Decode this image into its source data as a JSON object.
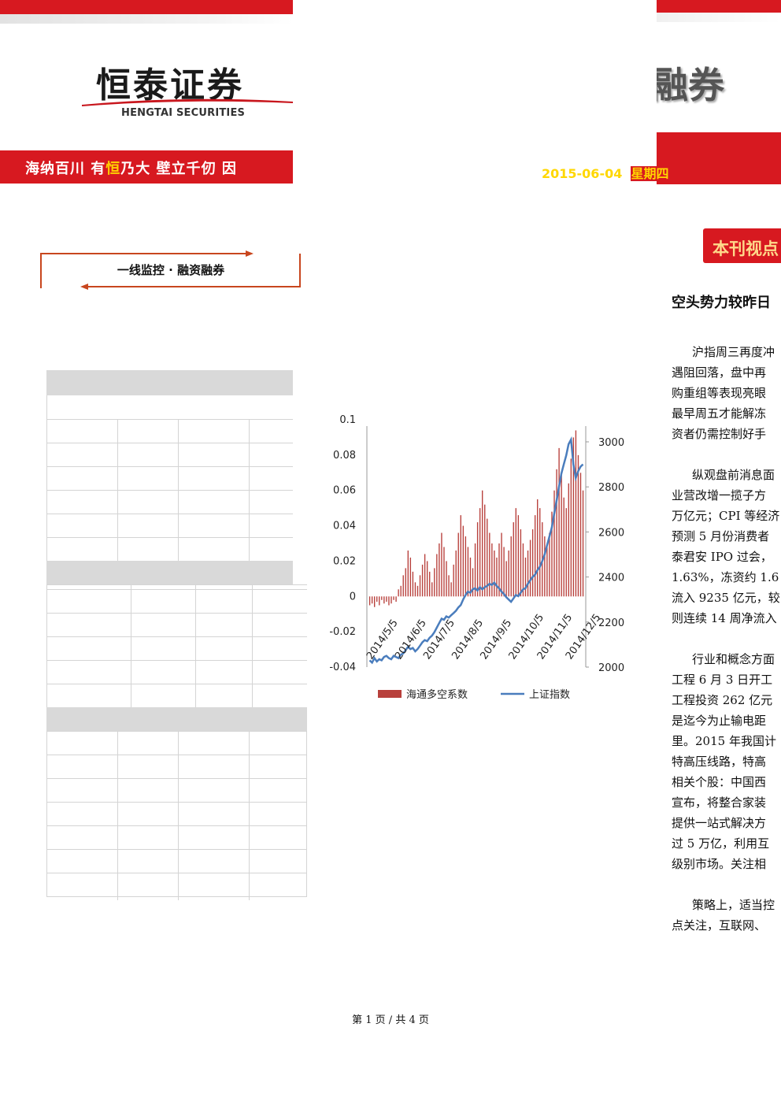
{
  "header": {
    "logo_cn": "恒泰证券",
    "logo_en": "HENGTAI SECURITIES",
    "slogan_part1": "海纳百川 有",
    "slogan_highlight": "恒",
    "slogan_part2": "乃大  壁立千仞 因",
    "right_logo_fragment": "融券",
    "date": "2015-06-04",
    "weekday": "星期四",
    "colors": {
      "brand_red": "#d71920",
      "date_yellow": "#ffd700"
    }
  },
  "section": {
    "title": "一线监控 · 融资融券"
  },
  "view": {
    "badge": "本刊视点",
    "headline": "空头势力较昨日",
    "paragraphs": [
      [
        "沪指周三再度冲",
        "遇阻回落，盘中再",
        "购重组等表现亮眼",
        "最早周五才能解冻",
        "资者仍需控制好手"
      ],
      [
        "纵观盘前消息面",
        "业营改增一揽子方",
        "万亿元；CPI 等经济",
        "预测 5 月份消费者",
        "泰君安 IPO 过会，",
        "1.63%，冻资约 1.6",
        "流入 9235 亿元，较",
        "则连续 14 周净流入"
      ],
      [
        "行业和概念方面",
        "工程 6 月 3 日开工",
        "工程投资 262 亿元",
        "是迄今为止输电距",
        "里。2015 年我国计",
        "特高压线路，特高",
        "相关个股：中国西",
        "宣布，将整合家装",
        "提供一站式解决方",
        "过 5 万亿，利用互",
        "级别市场。关注相"
      ],
      [
        "策略上，适当控",
        "点关注，互联网、"
      ]
    ]
  },
  "chart_data": {
    "type": "bar+line",
    "y_left": {
      "ticks": [
        "0.1",
        "0.08",
        "0.06",
        "0.04",
        "0.02",
        "0",
        "-0.02",
        "-0.04"
      ],
      "range": [
        -0.04,
        0.1
      ]
    },
    "y_right": {
      "ticks": [
        "3000",
        "2800",
        "2600",
        "2400",
        "2200",
        "2000"
      ],
      "range": [
        2000,
        3000
      ]
    },
    "x_ticks": [
      "2014/5/5",
      "2014/6/5",
      "2014/7/5",
      "2014/8/5",
      "2014/9/5",
      "2014/10/5",
      "2014/11/5",
      "2014/12/5"
    ],
    "legend": [
      "海通多空系数",
      "上证指数"
    ],
    "series": [
      {
        "name": "海通多空系数",
        "kind": "bar",
        "color": "#b8403c",
        "values": [
          -0.005,
          -0.004,
          -0.006,
          -0.003,
          -0.005,
          -0.002,
          -0.004,
          -0.003,
          -0.005,
          -0.004,
          -0.002,
          -0.003,
          0.004,
          0.006,
          0.012,
          0.016,
          0.026,
          0.022,
          0.014,
          0.008,
          0.006,
          0.012,
          0.018,
          0.024,
          0.02,
          0.014,
          0.008,
          0.016,
          0.024,
          0.03,
          0.036,
          0.028,
          0.02,
          0.012,
          0.008,
          0.018,
          0.026,
          0.036,
          0.046,
          0.04,
          0.034,
          0.028,
          0.022,
          0.016,
          0.03,
          0.042,
          0.05,
          0.06,
          0.052,
          0.044,
          0.036,
          0.03,
          0.026,
          0.022,
          0.03,
          0.036,
          0.028,
          0.02,
          0.026,
          0.034,
          0.042,
          0.05,
          0.046,
          0.038,
          0.03,
          0.022,
          0.026,
          0.032,
          0.038,
          0.046,
          0.055,
          0.05,
          0.042,
          0.034,
          0.028,
          0.036,
          0.048,
          0.06,
          0.072,
          0.084,
          0.07,
          0.056,
          0.05,
          0.064,
          0.078,
          0.09,
          0.094,
          0.08,
          0.07,
          0.06
        ]
      },
      {
        "name": "上证指数",
        "kind": "line",
        "color": "#4a7dbd",
        "values": [
          2030,
          2020,
          2040,
          2025,
          2035,
          2030,
          2045,
          2050,
          2040,
          2035,
          2050,
          2045,
          2040,
          2055,
          2060,
          2075,
          2090,
          2080,
          2085,
          2070,
          2080,
          2095,
          2110,
          2120,
          2115,
          2130,
          2140,
          2155,
          2175,
          2195,
          2215,
          2210,
          2225,
          2220,
          2230,
          2240,
          2250,
          2265,
          2275,
          2300,
          2320,
          2335,
          2330,
          2345,
          2350,
          2340,
          2355,
          2345,
          2355,
          2360,
          2370,
          2365,
          2375,
          2360,
          2350,
          2335,
          2325,
          2310,
          2300,
          2290,
          2305,
          2320,
          2315,
          2330,
          2345,
          2350,
          2370,
          2385,
          2400,
          2410,
          2430,
          2445,
          2470,
          2500,
          2540,
          2580,
          2620,
          2680,
          2740,
          2800,
          2860,
          2900,
          2940,
          2990,
          3010,
          2900,
          2840,
          2870,
          2890,
          2900
        ]
      }
    ]
  },
  "footer": {
    "page_label": "第 1 页 / 共 4 页"
  }
}
